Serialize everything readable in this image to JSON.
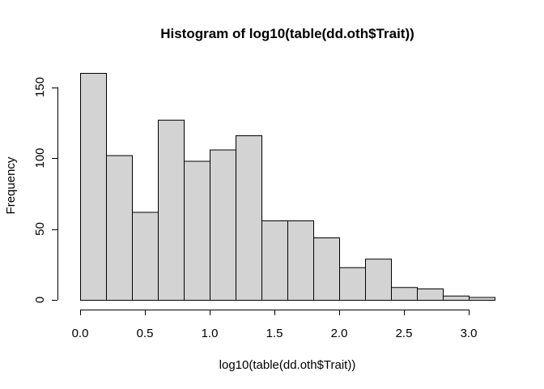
{
  "chart_data": {
    "type": "bar",
    "title": "Histogram of log10(table(dd.oth$Trait))",
    "xlabel": "log10(table(dd.oth$Trait))",
    "ylabel": "Frequency",
    "bin_edges": [
      0.0,
      0.2,
      0.4,
      0.6,
      0.8,
      1.0,
      1.2,
      1.4,
      1.6,
      1.8,
      2.0,
      2.2,
      2.4,
      2.6,
      2.8,
      3.0,
      3.2
    ],
    "values": [
      160,
      102,
      62,
      127,
      98,
      106,
      116,
      56,
      56,
      44,
      23,
      29,
      9,
      8,
      3,
      2
    ],
    "xlim": [
      0,
      3.2
    ],
    "ylim": [
      0,
      160
    ],
    "x_ticks": [
      0.0,
      0.5,
      1.0,
      1.5,
      2.0,
      2.5,
      3.0
    ],
    "x_tick_labels": [
      "0.0",
      "0.5",
      "1.0",
      "1.5",
      "2.0",
      "2.5",
      "3.0"
    ],
    "y_ticks": [
      0,
      50,
      100,
      150
    ],
    "y_tick_labels": [
      "0",
      "50",
      "100",
      "150"
    ],
    "grid": false,
    "colors": {
      "bar_fill": "#d3d3d3",
      "bar_stroke": "#000000"
    }
  }
}
